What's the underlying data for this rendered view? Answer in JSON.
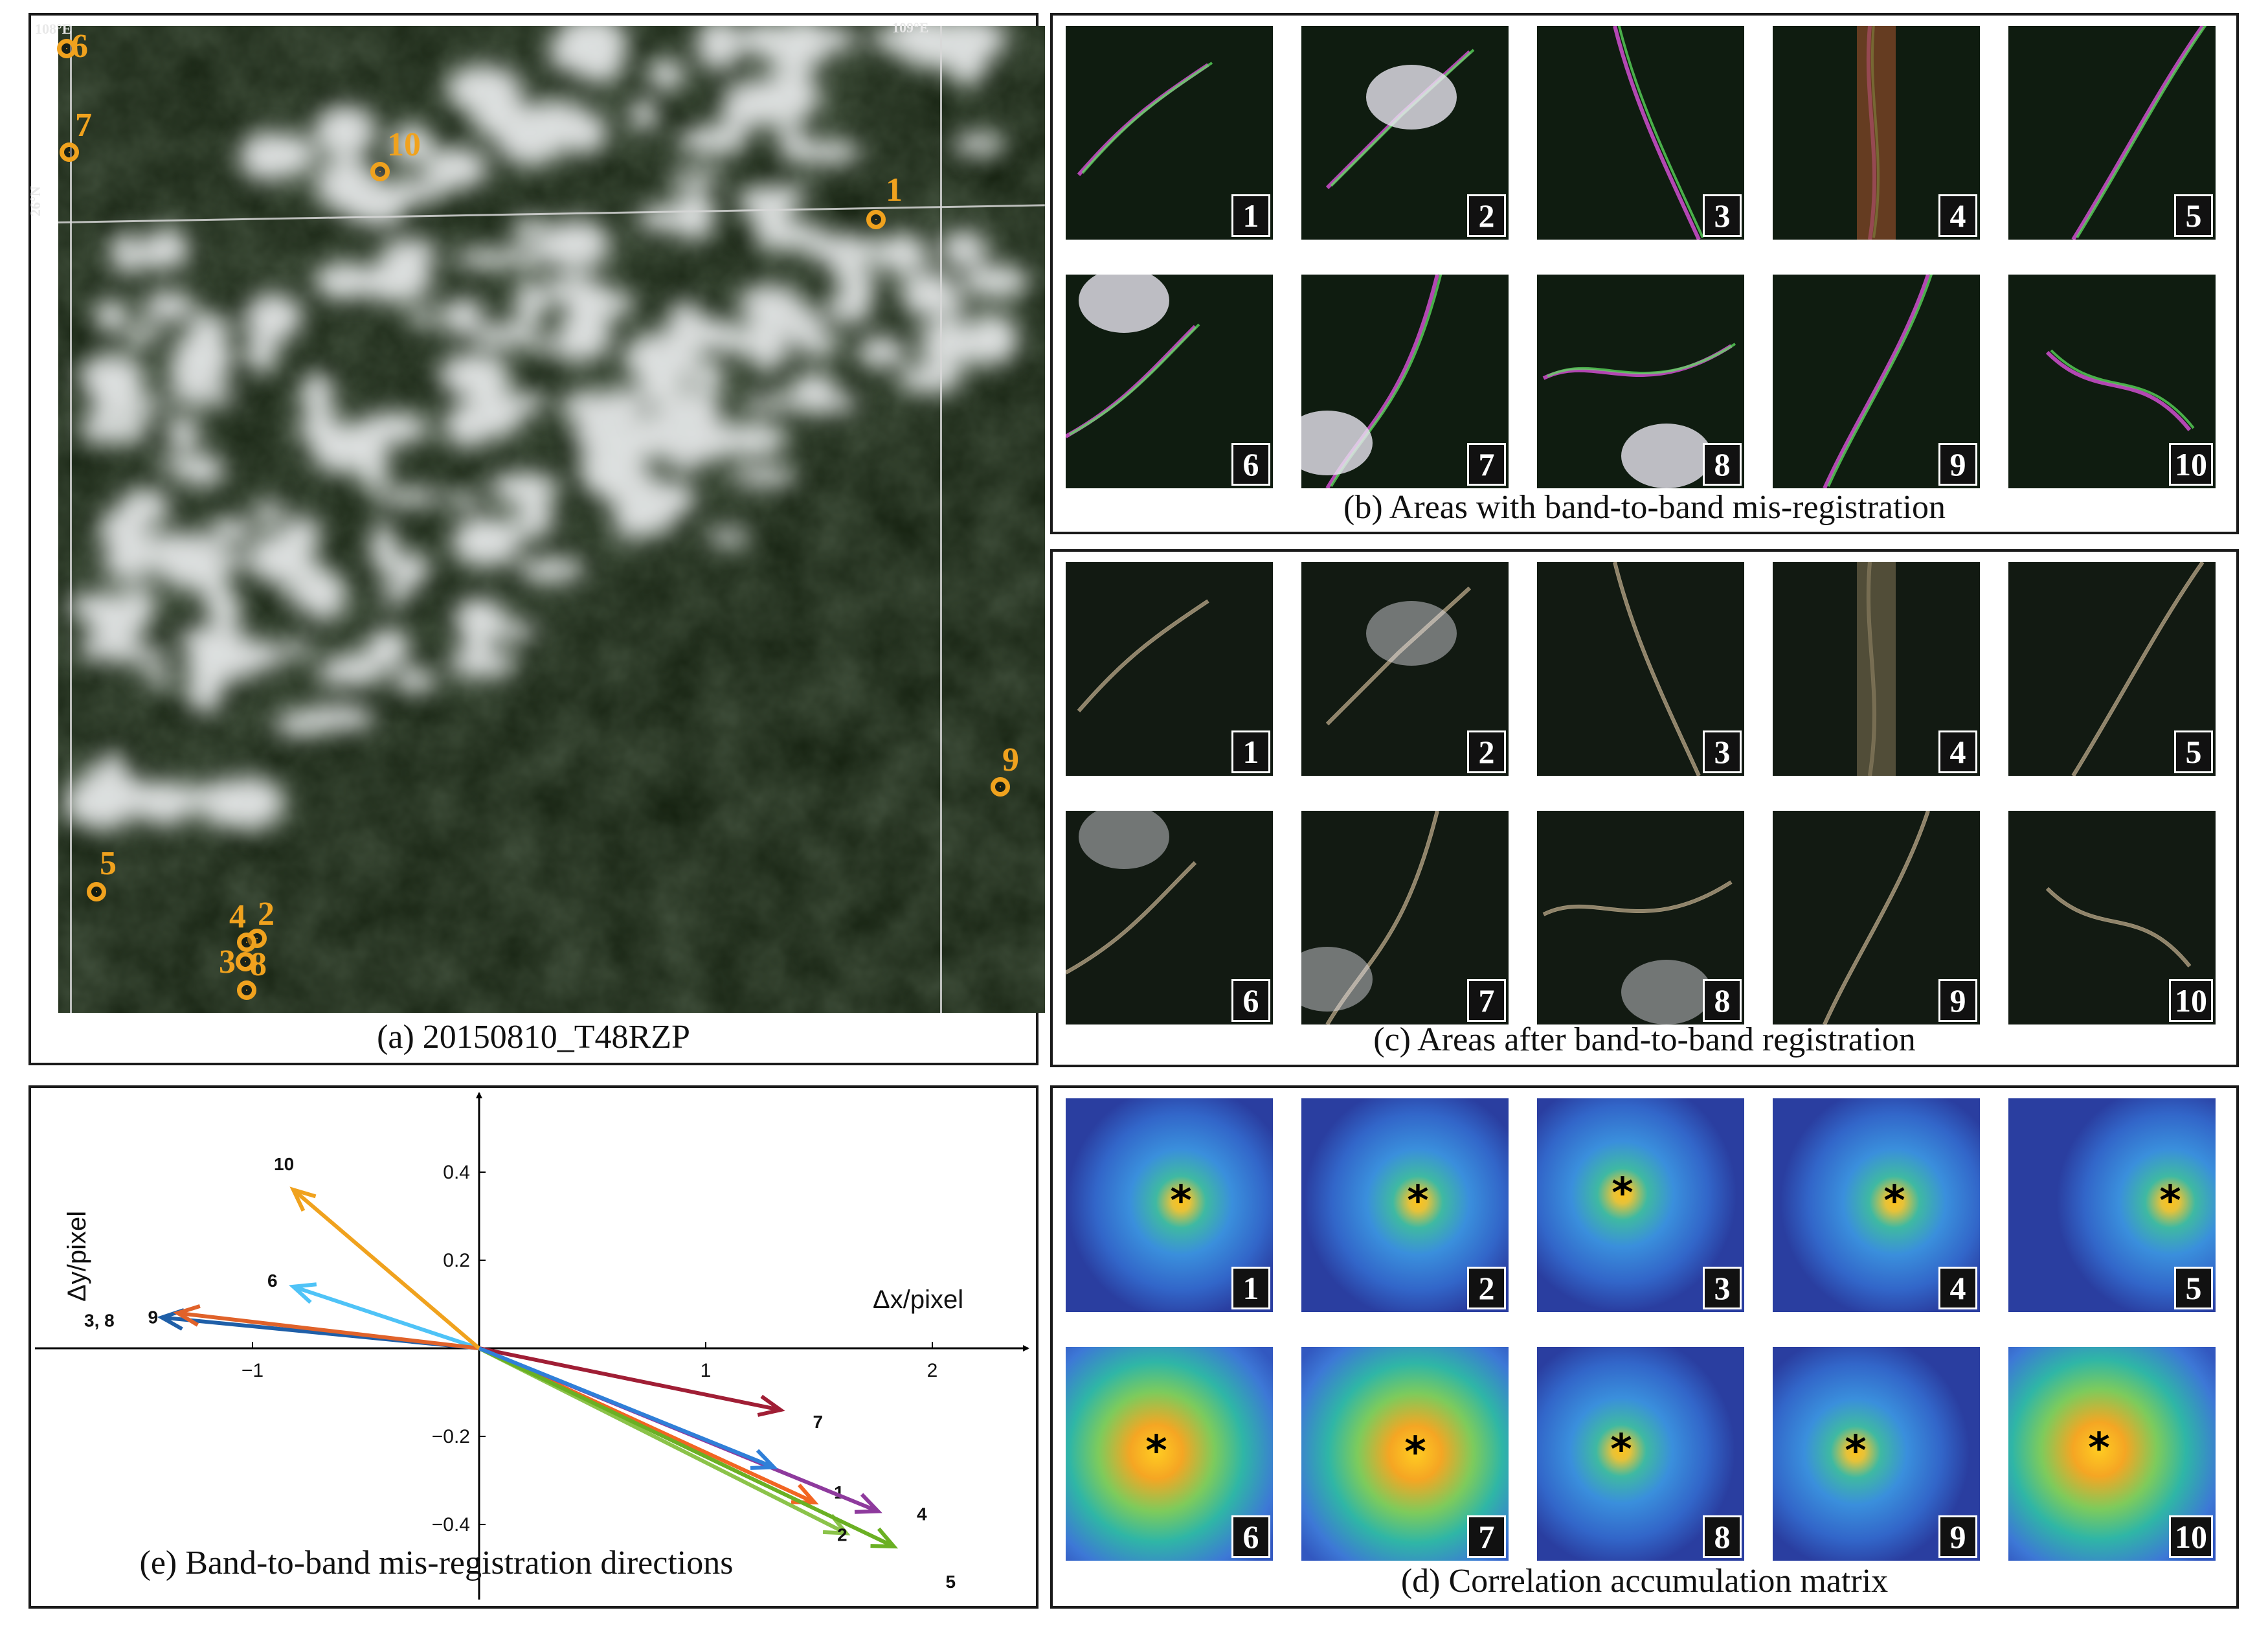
{
  "panel_a": {
    "caption": "(a) 20150810_T48RZP",
    "lon_labels": [
      "108°E",
      "109°E"
    ],
    "lat_label": "26°N",
    "sites": [
      {
        "label": "1"
      },
      {
        "label": "2"
      },
      {
        "label": "3"
      },
      {
        "label": "4"
      },
      {
        "label": "5"
      },
      {
        "label": "6"
      },
      {
        "label": "7"
      },
      {
        "label": "8"
      },
      {
        "label": "9"
      },
      {
        "label": "10"
      }
    ]
  },
  "panel_b": {
    "caption": "(b) Areas with band-to-band mis-registration",
    "tiles": [
      "1",
      "2",
      "3",
      "4",
      "5",
      "6",
      "7",
      "8",
      "9",
      "10"
    ]
  },
  "panel_c": {
    "caption": "(c) Areas after band-to-band registration",
    "tiles": [
      "1",
      "2",
      "3",
      "4",
      "5",
      "6",
      "7",
      "8",
      "9",
      "10"
    ]
  },
  "panel_d": {
    "caption": "(d) Correlation accumulation matrix",
    "tiles": [
      "1",
      "2",
      "3",
      "4",
      "5",
      "6",
      "7",
      "8",
      "9",
      "10"
    ],
    "peak_marker": "*"
  },
  "chart_data": {
    "type": "scatter",
    "title": "(e) Band-to-band mis-registration directions",
    "xlabel": "Δx/pixel",
    "ylabel": "Δy/pixel",
    "xticks": [
      "−1",
      "1",
      "2"
    ],
    "yticks": [
      "0.4",
      "0.2",
      "−0.2",
      "−0.4"
    ],
    "xlim": [
      -2.1,
      2.5
    ],
    "ylim": [
      -0.52,
      0.58
    ],
    "vectors": [
      {
        "label": "1",
        "dx": 1.48,
        "dy": -0.35,
        "color": "#f26522"
      },
      {
        "label": "2",
        "dx": 1.62,
        "dy": -0.42,
        "color": "#8bc34a"
      },
      {
        "label": "3, 8",
        "dx": -1.4,
        "dy": 0.07,
        "color": "#1f5fa8"
      },
      {
        "label": "4",
        "dx": 1.76,
        "dy": -0.37,
        "color": "#8e3a9d"
      },
      {
        "label": "5",
        "dx": 1.83,
        "dy": -0.45,
        "color": "#6ab023"
      },
      {
        "label": "6",
        "dx": -0.82,
        "dy": 0.14,
        "color": "#4fc3f7"
      },
      {
        "label": "7",
        "dx": 1.33,
        "dy": -0.14,
        "color": "#a01e35"
      },
      {
        "label": "9",
        "dx": -1.33,
        "dy": 0.08,
        "color": "#e0622a"
      },
      {
        "label": "10",
        "dx": -0.82,
        "dy": 0.36,
        "color": "#f0a21e"
      },
      {
        "label": "",
        "dx": 1.3,
        "dy": -0.27,
        "color": "#2f7fd8"
      }
    ]
  },
  "colors": {
    "marker": "#f0a21e",
    "frame": "#1a1a1a"
  }
}
